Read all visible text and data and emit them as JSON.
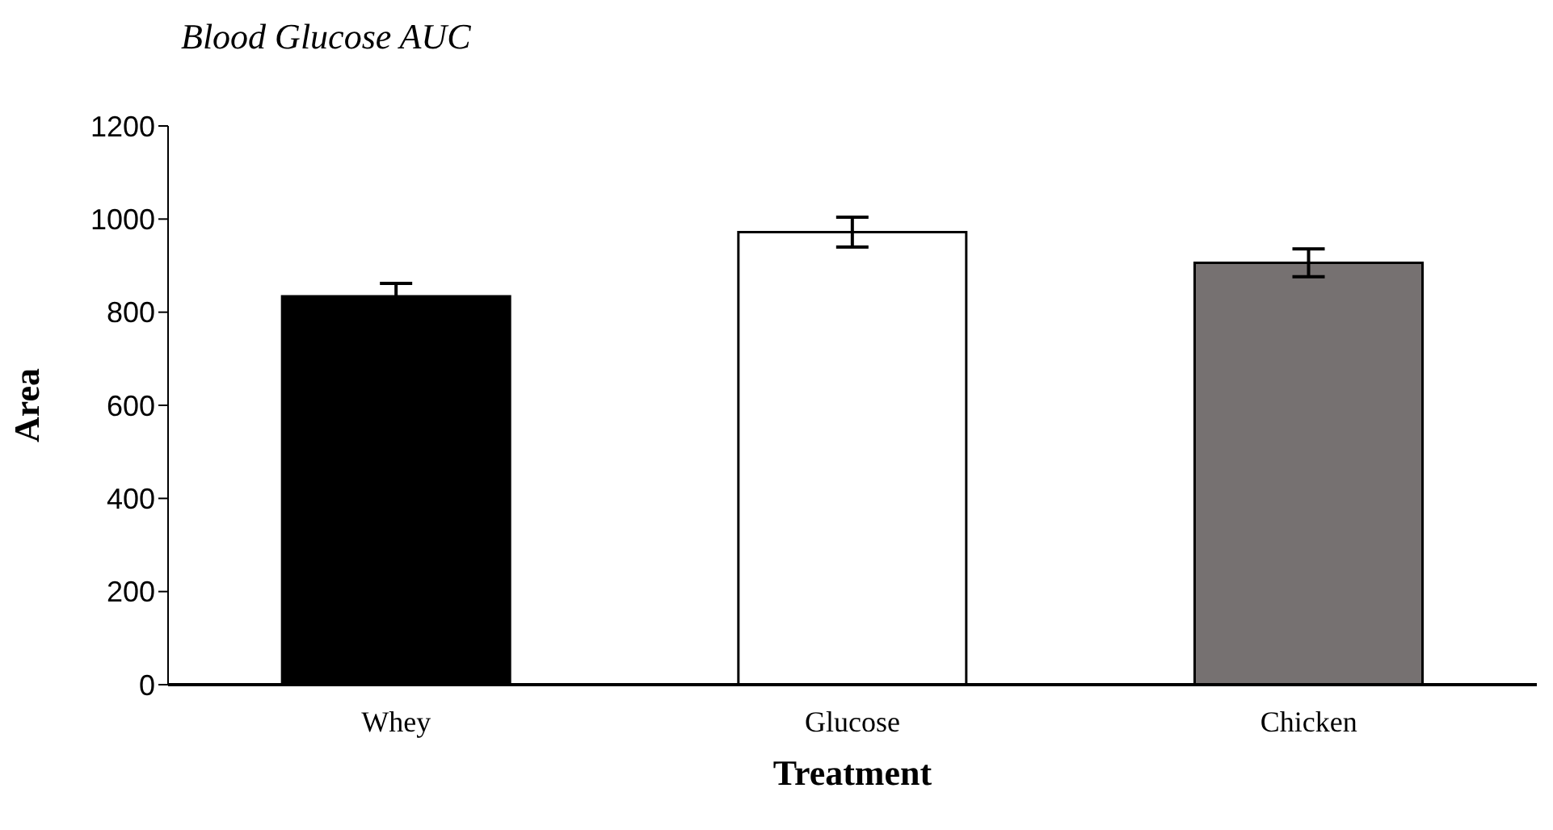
{
  "chart_data": {
    "type": "bar",
    "title": "Blood Glucose AUC",
    "xlabel": "Treatment",
    "ylabel": "Area",
    "categories": [
      "Whey",
      "Glucose",
      "Chicken"
    ],
    "values": [
      834,
      972,
      906
    ],
    "errors": [
      28,
      32,
      30
    ],
    "colors": [
      "#000000",
      "#ffffff",
      "#767171"
    ],
    "ylim": [
      0,
      1200
    ],
    "yticks": [
      0,
      200,
      400,
      600,
      800,
      1000,
      1200
    ],
    "grid": false,
    "legend": false
  }
}
